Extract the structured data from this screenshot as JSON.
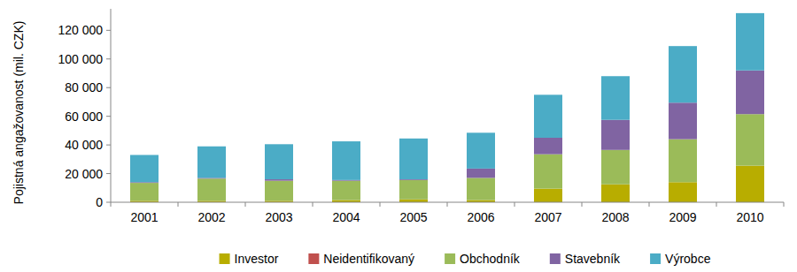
{
  "chart_data": {
    "type": "bar",
    "stacked": true,
    "y_label": "Pojistná angažovanost  (mil. CZK)",
    "categories": [
      "2001",
      "2002",
      "2003",
      "2004",
      "2005",
      "2006",
      "2007",
      "2008",
      "2009",
      "2010"
    ],
    "series": [
      {
        "name": "Investor",
        "color": "#b8ad00",
        "values": [
          1000,
          1000,
          1000,
          1500,
          2000,
          1500,
          9500,
          12500,
          14000,
          25500
        ]
      },
      {
        "name": "Neidentifikovaný",
        "color": "#c0504d",
        "values": [
          0,
          0,
          0,
          0,
          0,
          0,
          0,
          0,
          0,
          0
        ]
      },
      {
        "name": "Obchodník",
        "color": "#9bbb59",
        "values": [
          12500,
          15500,
          14000,
          13500,
          13500,
          15500,
          24000,
          24000,
          30000,
          36000
        ]
      },
      {
        "name": "Stavebník",
        "color": "#8064a2",
        "values": [
          500,
          500,
          1000,
          500,
          500,
          6500,
          11500,
          21000,
          25500,
          30500
        ]
      },
      {
        "name": "Výrobce",
        "color": "#4bacc6",
        "values": [
          19000,
          22000,
          24500,
          27000,
          28500,
          25000,
          30000,
          30500,
          39500,
          40000
        ]
      }
    ],
    "ylim": [
      0,
      135000
    ],
    "yticks": [
      0,
      {
        "value": 20000,
        "label": "20 000"
      },
      {
        "value": 40000,
        "label": "40 000"
      },
      {
        "value": 60000,
        "label": "60 000"
      },
      {
        "value": 80000,
        "label": "80 000"
      },
      {
        "value": 100000,
        "label": "100 000"
      },
      {
        "value": 120000,
        "label": "120 000"
      }
    ],
    "grid": false,
    "legend": "bottom"
  }
}
